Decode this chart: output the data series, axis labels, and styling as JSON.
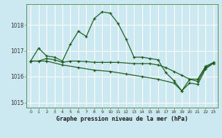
{
  "bg_color": "#cce8f0",
  "grid_color": "#ffffff",
  "line_color": "#1e5c1e",
  "border_color": "#5a8a5a",
  "xlabel": "Graphe pression niveau de la mer (hPa)",
  "ylim": [
    1014.8,
    1018.8
  ],
  "xlim": [
    -0.5,
    23.5
  ],
  "yticks": [
    1015,
    1016,
    1017,
    1018
  ],
  "xticks": [
    0,
    1,
    2,
    3,
    4,
    5,
    6,
    7,
    8,
    9,
    10,
    11,
    12,
    13,
    14,
    15,
    16,
    17,
    18,
    19,
    20,
    21,
    22,
    23
  ],
  "series1_x": [
    0,
    1,
    2,
    3,
    4,
    5,
    6,
    7,
    8,
    9,
    10,
    11,
    12,
    13,
    14,
    15,
    16,
    17,
    18,
    19,
    20,
    21,
    22,
    23
  ],
  "series1_y": [
    1016.6,
    1017.1,
    1016.8,
    1016.75,
    1016.6,
    1017.25,
    1017.75,
    1017.55,
    1018.25,
    1018.5,
    1018.45,
    1018.05,
    1017.45,
    1016.75,
    1016.75,
    1016.7,
    1016.65,
    1016.15,
    1015.85,
    1015.45,
    1015.9,
    1015.9,
    1016.4,
    1016.55
  ],
  "series2_x": [
    0,
    1,
    2,
    3,
    4,
    5,
    6,
    7,
    8,
    9,
    10,
    11,
    13,
    14,
    15,
    16,
    17,
    18,
    19,
    20,
    21,
    22,
    23
  ],
  "series2_y": [
    1016.6,
    1016.6,
    1016.7,
    1016.65,
    1016.55,
    1016.6,
    1016.6,
    1016.58,
    1016.55,
    1016.55,
    1016.55,
    1016.55,
    1016.5,
    1016.5,
    1016.5,
    1016.45,
    1016.35,
    1016.2,
    1016.05,
    1015.9,
    1015.82,
    1016.35,
    1016.52
  ],
  "series3_x": [
    0,
    2,
    4,
    6,
    8,
    10,
    12,
    14,
    16,
    18,
    19,
    20,
    21,
    22,
    23
  ],
  "series3_y": [
    1016.6,
    1016.6,
    1016.45,
    1016.35,
    1016.25,
    1016.2,
    1016.1,
    1016.0,
    1015.9,
    1015.75,
    1015.45,
    1015.75,
    1015.7,
    1016.3,
    1016.52
  ]
}
